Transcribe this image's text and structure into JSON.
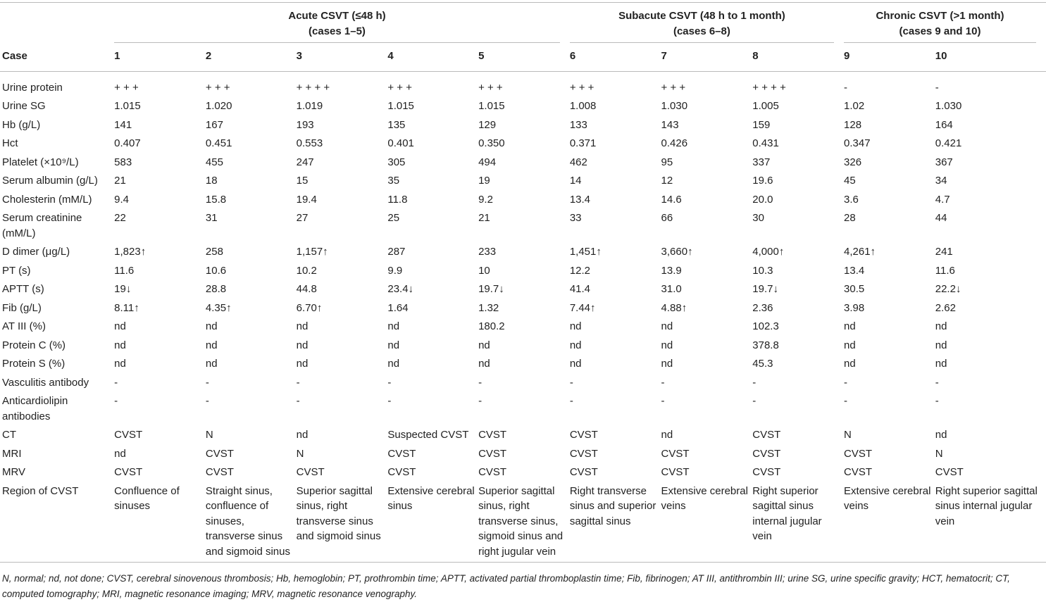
{
  "table": {
    "groups": [
      {
        "title": "Acute CSVT (≤48 h)",
        "cases": "(cases 1–5)"
      },
      {
        "title": "Subacute CSVT (48 h to 1 month)",
        "cases": "(cases 6–8)"
      },
      {
        "title": "Chronic CSVT (>1 month)",
        "cases": "(cases 9 and 10)"
      }
    ],
    "header": [
      "Case",
      "1",
      "2",
      "3",
      "4",
      "5",
      "6",
      "7",
      "8",
      "9",
      "10"
    ],
    "rows": [
      [
        "Urine protein",
        "+ + +",
        "+ + +",
        "+ + + +",
        "+ + +",
        "+ + +",
        "+ + +",
        "+ + +",
        "+ + + +",
        "-",
        "-"
      ],
      [
        "Urine SG",
        "1.015",
        "1.020",
        "1.019",
        "1.015",
        "1.015",
        "1.008",
        "1.030",
        "1.005",
        "1.02",
        "1.030"
      ],
      [
        "Hb (g/L)",
        "141",
        "167",
        "193",
        "135",
        "129",
        "133",
        "143",
        "159",
        "128",
        "164"
      ],
      [
        "Hct",
        "0.407",
        "0.451",
        "0.553",
        "0.401",
        "0.350",
        "0.371",
        "0.426",
        "0.431",
        "0.347",
        "0.421"
      ],
      [
        "Platelet (×10⁹/L)",
        "583",
        "455",
        "247",
        "305",
        "494",
        "462",
        "95",
        "337",
        "326",
        "367"
      ],
      [
        "Serum albumin (g/L)",
        "21",
        "18",
        "15",
        "35",
        "19",
        "14",
        "12",
        "19.6",
        "45",
        "34"
      ],
      [
        "Cholesterin (mM/L)",
        "9.4",
        "15.8",
        "19.4",
        "11.8",
        "9.2",
        "13.4",
        "14.6",
        "20.0",
        "3.6",
        "4.7"
      ],
      [
        "Serum creatinine (mM/L)",
        "22",
        "31",
        "27",
        "25",
        "21",
        "33",
        "66",
        "30",
        "28",
        "44"
      ],
      [
        "D dimer (μg/L)",
        "1,823↑",
        "258",
        "1,157↑",
        "287",
        "233",
        "1,451↑",
        "3,660↑",
        "4,000↑",
        "4,261↑",
        "241"
      ],
      [
        "PT (s)",
        "11.6",
        "10.6",
        "10.2",
        "9.9",
        "10",
        "12.2",
        "13.9",
        "10.3",
        "13.4",
        "11.6"
      ],
      [
        "APTT (s)",
        "19↓",
        "28.8",
        "44.8",
        "23.4↓",
        "19.7↓",
        "41.4",
        "31.0",
        "19.7↓",
        "30.5",
        "22.2↓"
      ],
      [
        "Fib (g/L)",
        "8.11↑",
        "4.35↑",
        "6.70↑",
        "1.64",
        "1.32",
        "7.44↑",
        "4.88↑",
        "2.36",
        "3.98",
        "2.62"
      ],
      [
        "AT III (%)",
        "nd",
        "nd",
        "nd",
        "nd",
        "180.2",
        "nd",
        "nd",
        "102.3",
        "nd",
        "nd"
      ],
      [
        "Protein C (%)",
        "nd",
        "nd",
        "nd",
        "nd",
        "nd",
        "nd",
        "nd",
        "378.8",
        "nd",
        "nd"
      ],
      [
        "Protein S (%)",
        "nd",
        "nd",
        "nd",
        "nd",
        "nd",
        "nd",
        "nd",
        "45.3",
        "nd",
        "nd"
      ],
      [
        "Vasculitis antibody",
        "-",
        "-",
        "-",
        "-",
        "-",
        "-",
        "-",
        "-",
        "-",
        "-"
      ],
      [
        "Anticardiolipin antibodies",
        "-",
        "-",
        "-",
        "-",
        "-",
        "-",
        "-",
        "-",
        "-",
        "-"
      ],
      [
        "CT",
        "CVST",
        "N",
        "nd",
        "Suspected CVST",
        "CVST",
        "CVST",
        "nd",
        "CVST",
        "N",
        "nd"
      ],
      [
        "MRI",
        "nd",
        "CVST",
        "N",
        "CVST",
        "CVST",
        "CVST",
        "CVST",
        "CVST",
        "CVST",
        "N"
      ],
      [
        "MRV",
        "CVST",
        "CVST",
        "CVST",
        "CVST",
        "CVST",
        "CVST",
        "CVST",
        "CVST",
        "CVST",
        "CVST"
      ],
      [
        "Region of CVST",
        "Confluence of sinuses",
        "Straight sinus, confluence of sinuses, transverse sinus and sigmoid sinus",
        "Superior sagittal sinus, right transverse sinus and sigmoid sinus",
        "Extensive cerebral sinus",
        "Superior sagittal sinus, right transverse sinus, sigmoid sinus and right jugular vein",
        "Right transverse sinus and superior sagittal sinus",
        "Extensive cerebral veins",
        "Right superior sagittal sinus internal jugular vein",
        "Extensive cerebral veins",
        "Right superior sagittal sinus internal jugular vein"
      ]
    ],
    "footnote": "N, normal; nd, not done; CVST, cerebral sinovenous thrombosis; Hb, hemoglobin; PT, prothrombin time; APTT, activated partial thromboplastin time; Fib, fibrinogen; AT III, antithrombin III; urine SG, urine specific gravity; HCT, hematocrit; CT, computed tomography; MRI, magnetic resonance imaging; MRV, magnetic resonance venography."
  }
}
